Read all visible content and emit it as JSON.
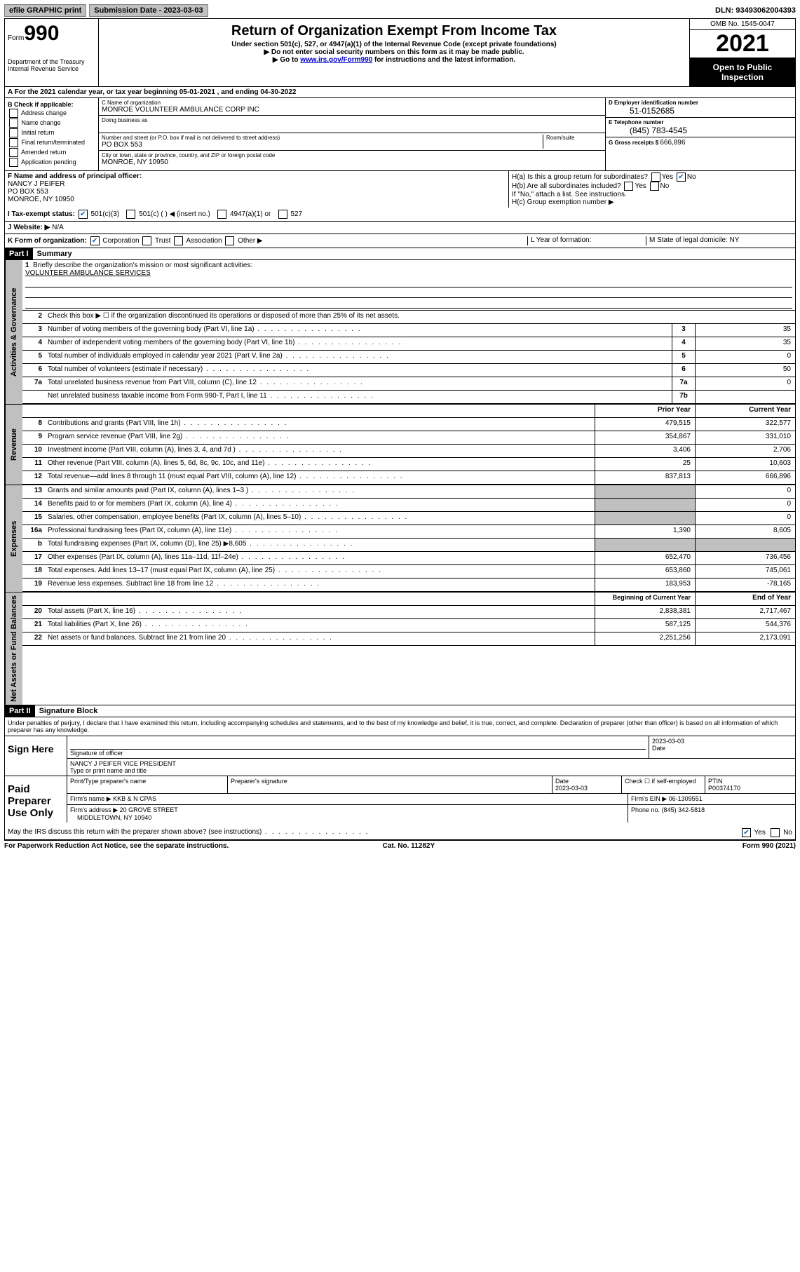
{
  "topbar": {
    "efile": "efile GRAPHIC print",
    "subdate_label": "Submission Date - 2023-03-03",
    "dln": "DLN: 93493062004393"
  },
  "header": {
    "form_prefix": "Form",
    "form_number": "990",
    "title": "Return of Organization Exempt From Income Tax",
    "subtitle": "Under section 501(c), 527, or 4947(a)(1) of the Internal Revenue Code (except private foundations)",
    "note1": "Do not enter social security numbers on this form as it may be made public.",
    "note2_pre": "Go to ",
    "note2_link": "www.irs.gov/Form990",
    "note2_post": " for instructions and the latest information.",
    "dept": "Department of the Treasury\nInternal Revenue Service",
    "omb": "OMB No. 1545-0047",
    "year": "2021",
    "open": "Open to Public Inspection"
  },
  "period": {
    "text_pre": "For the 2021 calendar year, or tax year beginning ",
    "begin": "05-01-2021",
    "mid": " , and ending ",
    "end": "04-30-2022"
  },
  "blockB": {
    "label": "B Check if applicable:",
    "items": [
      "Address change",
      "Name change",
      "Initial return",
      "Final return/terminated",
      "Amended return",
      "Application pending"
    ]
  },
  "blockC": {
    "name_label": "C Name of organization",
    "name": "MONROE VOLUNTEER AMBULANCE CORP INC",
    "dba_label": "Doing business as",
    "addr_label": "Number and street (or P.O. box if mail is not delivered to street address)",
    "room_label": "Room/suite",
    "addr": "PO BOX 553",
    "city_label": "City or town, state or province, country, and ZIP or foreign postal code",
    "city": "MONROE, NY  10950"
  },
  "blockD": {
    "ein_label": "D Employer identification number",
    "ein": "51-0152685",
    "phone_label": "E Telephone number",
    "phone": "(845) 783-4545",
    "gross_label": "G Gross receipts $ ",
    "gross": "666,896"
  },
  "blockF": {
    "label": "F Name and address of principal officer:",
    "name": "NANCY J PEIFER",
    "addr": "PO BOX 553",
    "city": "MONROE, NY  10950"
  },
  "blockH": {
    "a": "H(a)  Is this a group return for subordinates?",
    "b": "H(b)  Are all subordinates included?",
    "note": "If \"No,\" attach a list. See instructions.",
    "c": "H(c)  Group exemption number ▶",
    "yes": "Yes",
    "no": "No"
  },
  "lineI": {
    "label": "I  Tax-exempt status:",
    "opts": [
      "501(c)(3)",
      "501(c) (   ) ◀ (insert no.)",
      "4947(a)(1) or",
      "527"
    ]
  },
  "lineJ": {
    "label": "J  Website: ▶",
    "val": "N/A"
  },
  "lineK": {
    "label": "K Form of organization:",
    "opts": [
      "Corporation",
      "Trust",
      "Association",
      "Other ▶"
    ],
    "L": "L Year of formation:",
    "M": "M State of legal domicile: NY"
  },
  "part1": {
    "hdr": "Part I",
    "title": "Summary",
    "q1": "Briefly describe the organization's mission or most significant activities:",
    "mission": "VOLUNTEER AMBULANCE SERVICES",
    "q2": "Check this box ▶ ☐  if the organization discontinued its operations or disposed of more than 25% of its net assets.",
    "lines_single": [
      {
        "n": "3",
        "d": "Number of voting members of the governing body (Part VI, line 1a)",
        "box": "3",
        "v": "35"
      },
      {
        "n": "4",
        "d": "Number of independent voting members of the governing body (Part VI, line 1b)",
        "box": "4",
        "v": "35"
      },
      {
        "n": "5",
        "d": "Total number of individuals employed in calendar year 2021 (Part V, line 2a)",
        "box": "5",
        "v": "0"
      },
      {
        "n": "6",
        "d": "Total number of volunteers (estimate if necessary)",
        "box": "6",
        "v": "50"
      },
      {
        "n": "7a",
        "d": "Total unrelated business revenue from Part VIII, column (C), line 12",
        "box": "7a",
        "v": "0"
      },
      {
        "n": "",
        "d": "Net unrelated business taxable income from Form 990-T, Part I, line 11",
        "box": "7b",
        "v": ""
      }
    ],
    "col_prior": "Prior Year",
    "col_current": "Current Year",
    "revenue": [
      {
        "n": "8",
        "d": "Contributions and grants (Part VIII, line 1h)",
        "p": "479,515",
        "c": "322,577"
      },
      {
        "n": "9",
        "d": "Program service revenue (Part VIII, line 2g)",
        "p": "354,867",
        "c": "331,010"
      },
      {
        "n": "10",
        "d": "Investment income (Part VIII, column (A), lines 3, 4, and 7d )",
        "p": "3,406",
        "c": "2,706"
      },
      {
        "n": "11",
        "d": "Other revenue (Part VIII, column (A), lines 5, 6d, 8c, 9c, 10c, and 11e)",
        "p": "25",
        "c": "10,603"
      },
      {
        "n": "12",
        "d": "Total revenue—add lines 8 through 11 (must equal Part VIII, column (A), line 12)",
        "p": "837,813",
        "c": "666,896"
      }
    ],
    "expenses": [
      {
        "n": "13",
        "d": "Grants and similar amounts paid (Part IX, column (A), lines 1–3 )",
        "p": "",
        "c": "0"
      },
      {
        "n": "14",
        "d": "Benefits paid to or for members (Part IX, column (A), line 4)",
        "p": "",
        "c": "0"
      },
      {
        "n": "15",
        "d": "Salaries, other compensation, employee benefits (Part IX, column (A), lines 5–10)",
        "p": "",
        "c": "0"
      },
      {
        "n": "16a",
        "d": "Professional fundraising fees (Part IX, column (A), line 11e)",
        "p": "1,390",
        "c": "8,605"
      },
      {
        "n": "b",
        "d": "Total fundraising expenses (Part IX, column (D), line 25) ▶8,605",
        "p": "",
        "c": ""
      },
      {
        "n": "17",
        "d": "Other expenses (Part IX, column (A), lines 11a–11d, 11f–24e)",
        "p": "652,470",
        "c": "736,456"
      },
      {
        "n": "18",
        "d": "Total expenses. Add lines 13–17 (must equal Part IX, column (A), line 25)",
        "p": "653,860",
        "c": "745,061"
      },
      {
        "n": "19",
        "d": "Revenue less expenses. Subtract line 18 from line 12",
        "p": "183,953",
        "c": "-78,165"
      }
    ],
    "col_begin": "Beginning of Current Year",
    "col_end": "End of Year",
    "balances": [
      {
        "n": "20",
        "d": "Total assets (Part X, line 16)",
        "p": "2,838,381",
        "c": "2,717,467"
      },
      {
        "n": "21",
        "d": "Total liabilities (Part X, line 26)",
        "p": "587,125",
        "c": "544,376"
      },
      {
        "n": "22",
        "d": "Net assets or fund balances. Subtract line 21 from line 20",
        "p": "2,251,256",
        "c": "2,173,091"
      }
    ],
    "vtab_gov": "Activities & Governance",
    "vtab_rev": "Revenue",
    "vtab_exp": "Expenses",
    "vtab_bal": "Net Assets or Fund Balances"
  },
  "part2": {
    "hdr": "Part II",
    "title": "Signature Block",
    "decl": "Under penalties of perjury, I declare that I have examined this return, including accompanying schedules and statements, and to the best of my knowledge and belief, it is true, correct, and complete. Declaration of preparer (other than officer) is based on all information of which preparer has any knowledge.",
    "sign_here": "Sign Here",
    "sig_officer": "Signature of officer",
    "date": "Date",
    "date_val": "2023-03-03",
    "name_title": "NANCY J PEIFER  VICE PRESIDENT",
    "type_name": "Type or print name and title",
    "paid": "Paid Preparer Use Only",
    "prep_name_label": "Print/Type preparer's name",
    "prep_sig_label": "Preparer's signature",
    "prep_date": "2023-03-03",
    "check_self": "Check ☐ if self-employed",
    "ptin_label": "PTIN",
    "ptin": "P00374170",
    "firm_name_label": "Firm's name ▶",
    "firm_name": "KKB & N CPAS",
    "firm_ein_label": "Firm's EIN ▶",
    "firm_ein": "06-1309551",
    "firm_addr_label": "Firm's address ▶",
    "firm_addr": "20 GROVE STREET",
    "firm_city": "MIDDLETOWN, NY  10940",
    "phone_label": "Phone no.",
    "phone": "(845) 342-5818",
    "discuss": "May the IRS discuss this return with the preparer shown above? (see instructions)"
  },
  "footer": {
    "left": "For Paperwork Reduction Act Notice, see the separate instructions.",
    "mid": "Cat. No. 11282Y",
    "right": "Form 990 (2021)"
  }
}
